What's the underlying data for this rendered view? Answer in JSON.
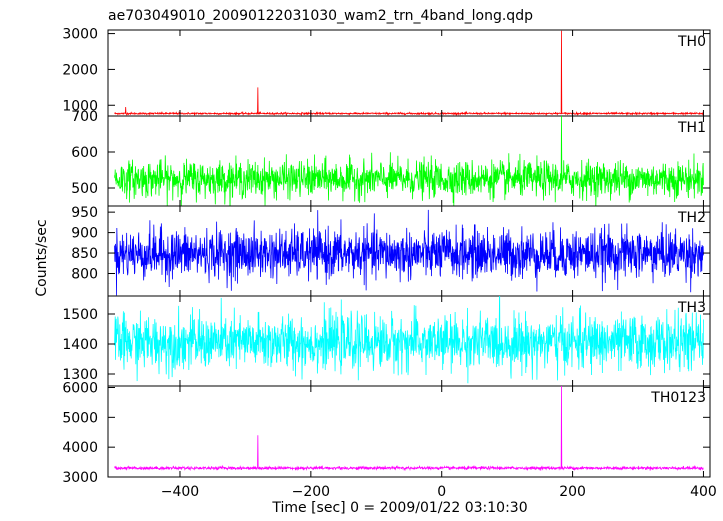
{
  "title": "ae703049010_20090122031030_wam2_trn_4band_long.qdp",
  "xlabel": "Time [sec] 0 = 2009/01/22 03:10:30",
  "ylabel": "Counts/sec",
  "chart_data": {
    "type": "line",
    "title": "ae703049010_20090122031030_wam2_trn_4band_long.qdp",
    "xlabel": "Time [sec] 0 = 2009/01/22 03:10:30",
    "ylabel": "Counts/sec",
    "xlim": [
      -510,
      410
    ],
    "x_ticks": [
      -400,
      -200,
      0,
      200,
      400
    ],
    "x_tick_labels": [
      "−400",
      "−200",
      "0",
      "200",
      "400"
    ],
    "grid": false,
    "panels": [
      {
        "name": "TH0",
        "color": "#ff0000",
        "ylim": [
          700,
          3100
        ],
        "y_ticks": [
          1000,
          2000,
          3000
        ],
        "y_tick_labels": [
          "1000",
          "2000",
          "3000"
        ],
        "baseline": 770,
        "noise": 12,
        "spikes": [
          {
            "x": -483,
            "y": 950
          },
          {
            "x": -281,
            "y": 1500
          },
          {
            "x": 183,
            "y": 3080
          }
        ]
      },
      {
        "name": "TH1",
        "color": "#00ff00",
        "ylim": [
          450,
          700
        ],
        "y_ticks": [
          500,
          600,
          700
        ],
        "y_tick_labels": [
          "500",
          "600",
          "700"
        ],
        "baseline": 525,
        "noise": 25,
        "spikes": [
          {
            "x": 183,
            "y": 700
          }
        ]
      },
      {
        "name": "TH2",
        "color": "#0000ff",
        "ylim": [
          745,
          965
        ],
        "y_ticks": [
          800,
          850,
          900,
          950
        ],
        "y_tick_labels": [
          "800",
          "850",
          "900",
          "950"
        ],
        "baseline": 848,
        "noise": 30,
        "spikes": []
      },
      {
        "name": "TH3",
        "color": "#00ffff",
        "ylim": [
          1260,
          1560
        ],
        "y_ticks": [
          1300,
          1400,
          1500
        ],
        "y_tick_labels": [
          "1300",
          "1400",
          "1500"
        ],
        "baseline": 1405,
        "noise": 45,
        "spikes": []
      },
      {
        "name": "TH0123",
        "color": "#ff00ff",
        "ylim": [
          3000,
          6050
        ],
        "y_ticks": [
          3000,
          4000,
          5000,
          6000
        ],
        "y_tick_labels": [
          "3000",
          "4000",
          "5000",
          "6000"
        ],
        "baseline": 3300,
        "noise": 25,
        "spikes": [
          {
            "x": -281,
            "y": 4400
          },
          {
            "x": 183,
            "y": 6050
          }
        ]
      }
    ]
  }
}
